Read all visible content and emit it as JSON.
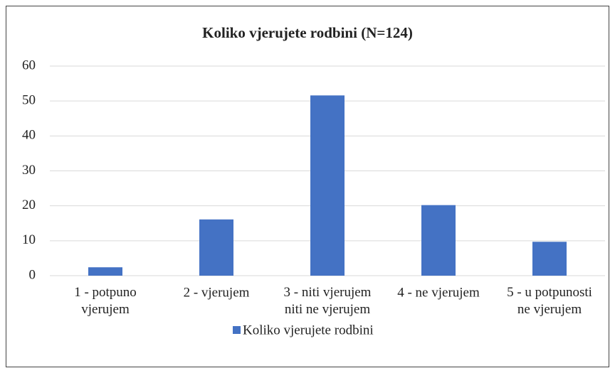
{
  "chart_data": {
    "type": "bar",
    "title": "Koliko vjerujete rodbini (N=124)",
    "categories": [
      "1 - potpuno\nvjerujem",
      "2 - vjerujem",
      "3 - niti vjerujem\nniti ne vjerujem",
      "4 - ne vjerujem",
      "5 - u potpunosti\nne vjerujem"
    ],
    "series": [
      {
        "name": "Koliko vjerujete rodbini",
        "color": "#4472c4",
        "values": [
          2.4,
          16.1,
          51.6,
          20.2,
          9.7
        ]
      }
    ],
    "ylim": [
      0,
      60
    ],
    "yticks": [
      0,
      10,
      20,
      30,
      40,
      50,
      60
    ],
    "grid": true,
    "legend": "bottom"
  }
}
